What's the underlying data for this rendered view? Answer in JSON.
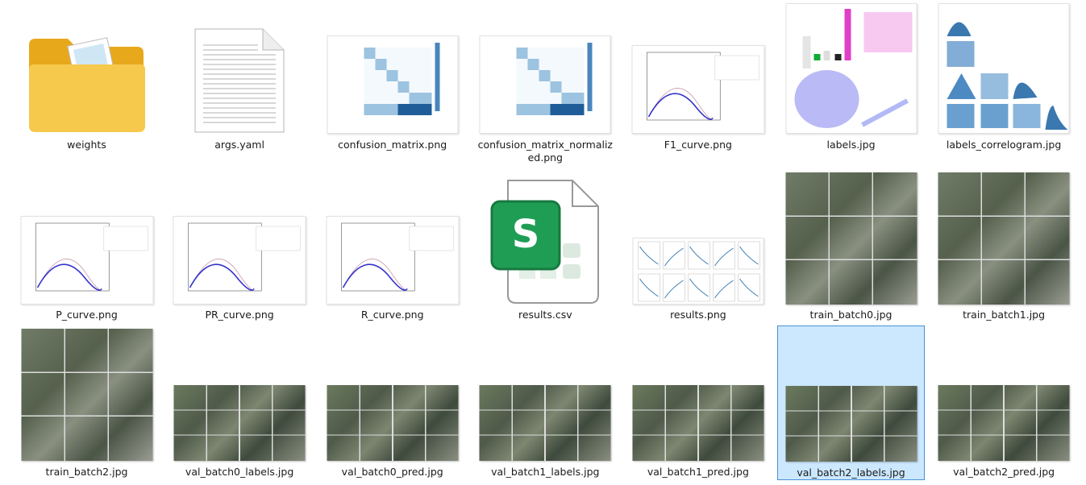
{
  "files": [
    "weights",
    "args.yaml",
    "confusion_matrix.png",
    "confusion_matrix_normalized.png",
    "F1_curve.png",
    "labels.jpg",
    "labels_correlogram.jpg",
    "P_curve.png",
    "PR_curve.png",
    "R_curve.png",
    "results.csv",
    "results.png",
    "train_batch0.jpg",
    "train_batch1.jpg",
    "train_batch2.jpg",
    "val_batch0_labels.jpg",
    "val_batch0_pred.jpg",
    "val_batch1_labels.jpg",
    "val_batch1_pred.jpg",
    "val_batch2_labels.jpg",
    "val_batch2_pred.jpg"
  ],
  "selected": 19
}
